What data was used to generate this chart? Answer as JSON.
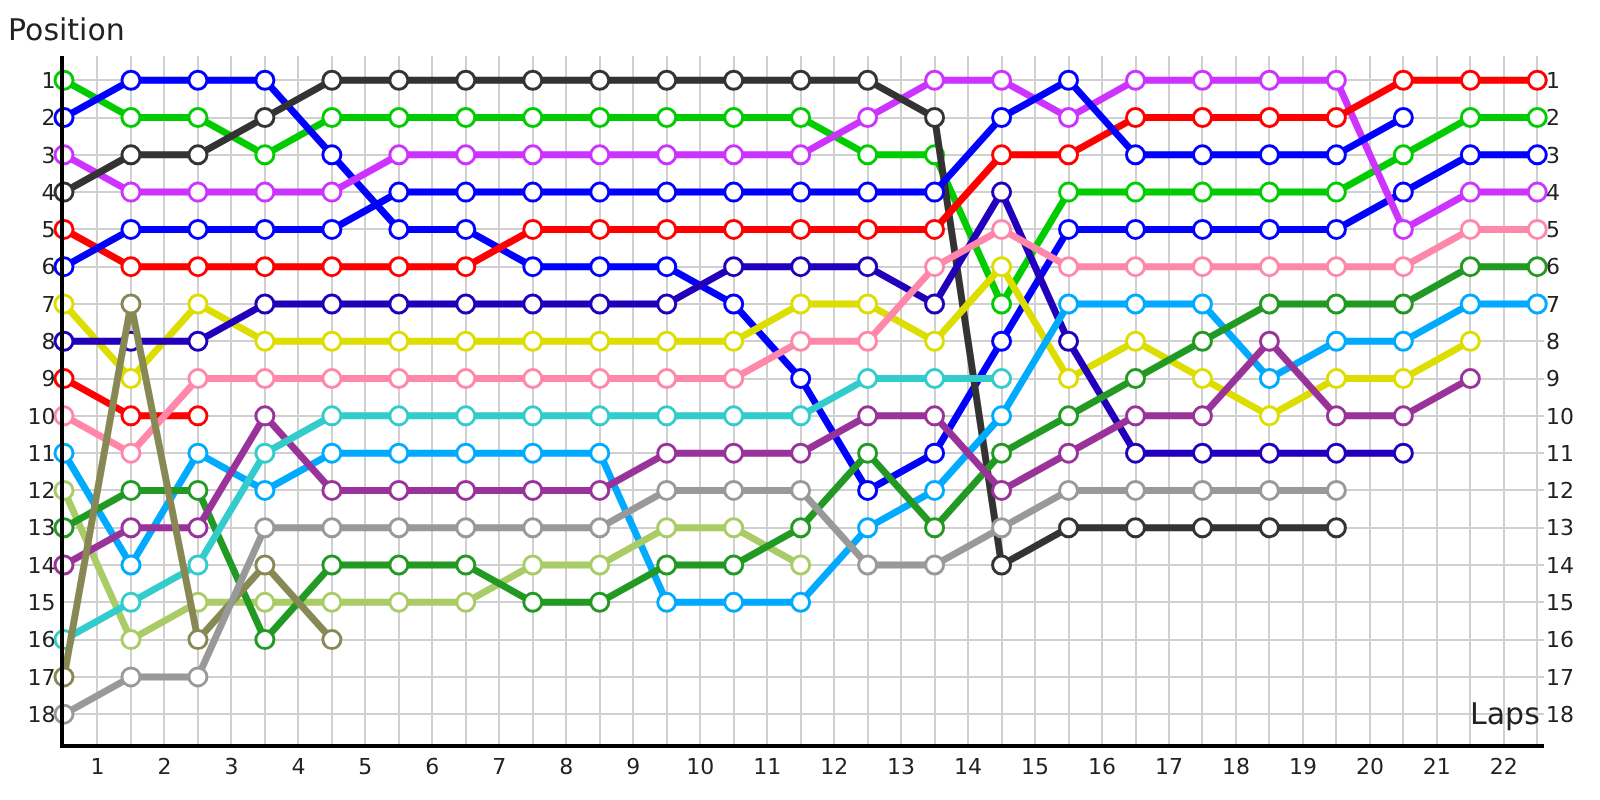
{
  "chart_data": {
    "type": "line",
    "xlabel": "Laps",
    "ylabel": "Position",
    "x": [
      0,
      1,
      2,
      3,
      4,
      5,
      6,
      7,
      8,
      9,
      10,
      11,
      12,
      13,
      14,
      15,
      16,
      17,
      18,
      19,
      20,
      21,
      22
    ],
    "xlim": [
      0,
      22.1
    ],
    "xticks": [
      {
        "value": 0,
        "label": null
      },
      {
        "value": 0.5,
        "label": "1"
      },
      {
        "value": 1,
        "label": null
      },
      {
        "value": 1.5,
        "label": "2"
      },
      {
        "value": 2,
        "label": null
      },
      {
        "value": 2.5,
        "label": "3"
      },
      {
        "value": 3,
        "label": null
      },
      {
        "value": 3.5,
        "label": "4"
      },
      {
        "value": 4,
        "label": null
      },
      {
        "value": 4.5,
        "label": "5"
      },
      {
        "value": 5,
        "label": null
      },
      {
        "value": 5.5,
        "label": "6"
      },
      {
        "value": 6,
        "label": null
      },
      {
        "value": 6.5,
        "label": "7"
      },
      {
        "value": 7,
        "label": null
      },
      {
        "value": 7.5,
        "label": "8"
      },
      {
        "value": 8,
        "label": null
      },
      {
        "value": 8.5,
        "label": "9"
      },
      {
        "value": 9,
        "label": null
      },
      {
        "value": 9.5,
        "label": "10"
      },
      {
        "value": 10,
        "label": null
      },
      {
        "value": 10.5,
        "label": "11"
      },
      {
        "value": 11,
        "label": null
      },
      {
        "value": 11.5,
        "label": "12"
      },
      {
        "value": 12,
        "label": null
      },
      {
        "value": 12.5,
        "label": "13"
      },
      {
        "value": 13,
        "label": null
      },
      {
        "value": 13.5,
        "label": "14"
      },
      {
        "value": 14,
        "label": null
      },
      {
        "value": 14.5,
        "label": "15"
      },
      {
        "value": 15,
        "label": null
      },
      {
        "value": 15.5,
        "label": "16"
      },
      {
        "value": 16,
        "label": null
      },
      {
        "value": 16.5,
        "label": "17"
      },
      {
        "value": 17,
        "label": null
      },
      {
        "value": 17.5,
        "label": "18"
      },
      {
        "value": 18,
        "label": null
      },
      {
        "value": 18.5,
        "label": "19"
      },
      {
        "value": 19,
        "label": null
      },
      {
        "value": 19.5,
        "label": "20"
      },
      {
        "value": 20,
        "label": null
      },
      {
        "value": 20.5,
        "label": "21"
      },
      {
        "value": 21,
        "label": null
      },
      {
        "value": 21.5,
        "label": "22"
      },
      {
        "value": 22,
        "label": null
      }
    ],
    "ylim": [
      18.8,
      0.35
    ],
    "yticks": [
      1,
      2,
      3,
      4,
      5,
      6,
      7,
      8,
      9,
      10,
      11,
      12,
      13,
      14,
      15,
      16,
      17,
      18
    ],
    "y2lim": [
      18.8,
      0.35
    ],
    "y2ticks": [
      1,
      2,
      3,
      4,
      5,
      6,
      7,
      8,
      9,
      10,
      11,
      12,
      13,
      14,
      15,
      16,
      17,
      18
    ],
    "grid": true,
    "marker": "circle",
    "line_style": "solid",
    "series": [
      {
        "color": "#00cc00",
        "values": [
          1,
          2,
          2,
          3,
          2,
          2,
          2,
          2,
          2,
          2,
          2,
          2,
          3,
          3,
          7,
          4,
          4,
          4,
          4,
          4,
          3,
          2,
          2
        ]
      },
      {
        "color": "#0000ff",
        "values": [
          2,
          1,
          1,
          1,
          3,
          5,
          5,
          6,
          6,
          6,
          7,
          9,
          12,
          11,
          8,
          5,
          5,
          5,
          5,
          5,
          4,
          3,
          3
        ]
      },
      {
        "color": "#cc33ff",
        "values": [
          3,
          4,
          4,
          4,
          4,
          3,
          3,
          3,
          3,
          3,
          3,
          3,
          2,
          1,
          1,
          2,
          1,
          1,
          1,
          1,
          5,
          4,
          4
        ]
      },
      {
        "color": "#333333",
        "x": [
          0,
          1,
          2,
          3,
          4,
          5,
          6,
          7,
          8,
          9,
          10,
          11,
          12,
          13,
          14,
          15,
          16,
          17,
          18,
          19
        ],
        "values": [
          4,
          3,
          3,
          2,
          1,
          1,
          1,
          1,
          1,
          1,
          1,
          1,
          1,
          2,
          14,
          13,
          13,
          13,
          13,
          13
        ]
      },
      {
        "color": "#ff0000",
        "values": [
          5,
          6,
          6,
          6,
          6,
          6,
          6,
          5,
          5,
          5,
          5,
          5,
          5,
          5,
          3,
          3,
          2,
          2,
          2,
          2,
          1,
          1,
          1
        ]
      },
      {
        "color": "#0000ff",
        "x": [
          0,
          1,
          2,
          3,
          4,
          5,
          6,
          7,
          8,
          9,
          10,
          11,
          12,
          13,
          14,
          15,
          16,
          17,
          18,
          19,
          20
        ],
        "values": [
          6,
          5,
          5,
          5,
          5,
          4,
          4,
          4,
          4,
          4,
          4,
          4,
          4,
          4,
          2,
          1,
          3,
          3,
          3,
          3,
          2
        ]
      },
      {
        "color": "#dddd00",
        "x": [
          0,
          1,
          2,
          3,
          4,
          5,
          6,
          7,
          8,
          9,
          10,
          11,
          12,
          13,
          14,
          15,
          16,
          17,
          18,
          19,
          20,
          21
        ],
        "values": [
          7,
          9,
          7,
          8,
          8,
          8,
          8,
          8,
          8,
          8,
          8,
          7,
          7,
          8,
          6,
          9,
          8,
          9,
          10,
          9,
          9,
          8
        ]
      },
      {
        "color": "#2200bb",
        "x": [
          0,
          1,
          2,
          3,
          4,
          5,
          6,
          7,
          8,
          9,
          10,
          11,
          12,
          13,
          14,
          15,
          16,
          17,
          18,
          19,
          20
        ],
        "values": [
          8,
          8,
          8,
          7,
          7,
          7,
          7,
          7,
          7,
          7,
          6,
          6,
          6,
          7,
          4,
          8,
          11,
          11,
          11,
          11,
          11
        ]
      },
      {
        "color": "#ff0000",
        "x": [
          0,
          1,
          2
        ],
        "values": [
          9,
          10,
          10
        ]
      },
      {
        "color": "#ff88aa",
        "values": [
          10,
          11,
          9,
          9,
          9,
          9,
          9,
          9,
          9,
          9,
          9,
          8,
          8,
          6,
          5,
          6,
          6,
          6,
          6,
          6,
          6,
          5,
          5
        ]
      },
      {
        "color": "#00aaff",
        "values": [
          11,
          14,
          11,
          12,
          11,
          11,
          11,
          11,
          11,
          15,
          15,
          15,
          13,
          12,
          10,
          7,
          7,
          7,
          9,
          8,
          8,
          7,
          7
        ]
      },
      {
        "color": "#aacc66",
        "x": [
          0,
          1,
          2,
          3,
          4,
          5,
          6,
          7,
          8,
          9,
          10,
          11
        ],
        "values": [
          12,
          16,
          15,
          15,
          15,
          15,
          15,
          14,
          14,
          13,
          13,
          14
        ]
      },
      {
        "color": "#229922",
        "values": [
          13,
          12,
          12,
          16,
          14,
          14,
          14,
          15,
          15,
          14,
          14,
          13,
          11,
          13,
          11,
          10,
          9,
          8,
          7,
          7,
          7,
          6,
          6
        ]
      },
      {
        "color": "#993399",
        "x": [
          0,
          1,
          2,
          3,
          4,
          5,
          6,
          7,
          8,
          9,
          10,
          11,
          12,
          13,
          14,
          15,
          16,
          17,
          18,
          19,
          20,
          21
        ],
        "values": [
          14,
          13,
          13,
          10,
          12,
          12,
          12,
          12,
          12,
          11,
          11,
          11,
          10,
          10,
          12,
          11,
          10,
          10,
          8,
          10,
          10,
          9
        ]
      },
      {
        "color": "#33cccc",
        "x": [
          0,
          1,
          2,
          3,
          4,
          5,
          6,
          7,
          8,
          9,
          10,
          11,
          12,
          13,
          14
        ],
        "values": [
          16,
          15,
          14,
          11,
          10,
          10,
          10,
          10,
          10,
          10,
          10,
          10,
          9,
          9,
          9
        ]
      },
      {
        "color": "#888855",
        "x": [
          0,
          1,
          2,
          3,
          4
        ],
        "values": [
          17,
          7,
          16,
          14,
          16
        ]
      },
      {
        "color": "#999999",
        "x": [
          0,
          1,
          2,
          3,
          4,
          5,
          6,
          7,
          8,
          9,
          10,
          11,
          12,
          13,
          14,
          15,
          16,
          17,
          18,
          19
        ],
        "values": [
          18,
          17,
          17,
          13,
          13,
          13,
          13,
          13,
          13,
          12,
          12,
          12,
          14,
          14,
          13,
          12,
          12,
          12,
          12,
          12
        ]
      }
    ]
  }
}
